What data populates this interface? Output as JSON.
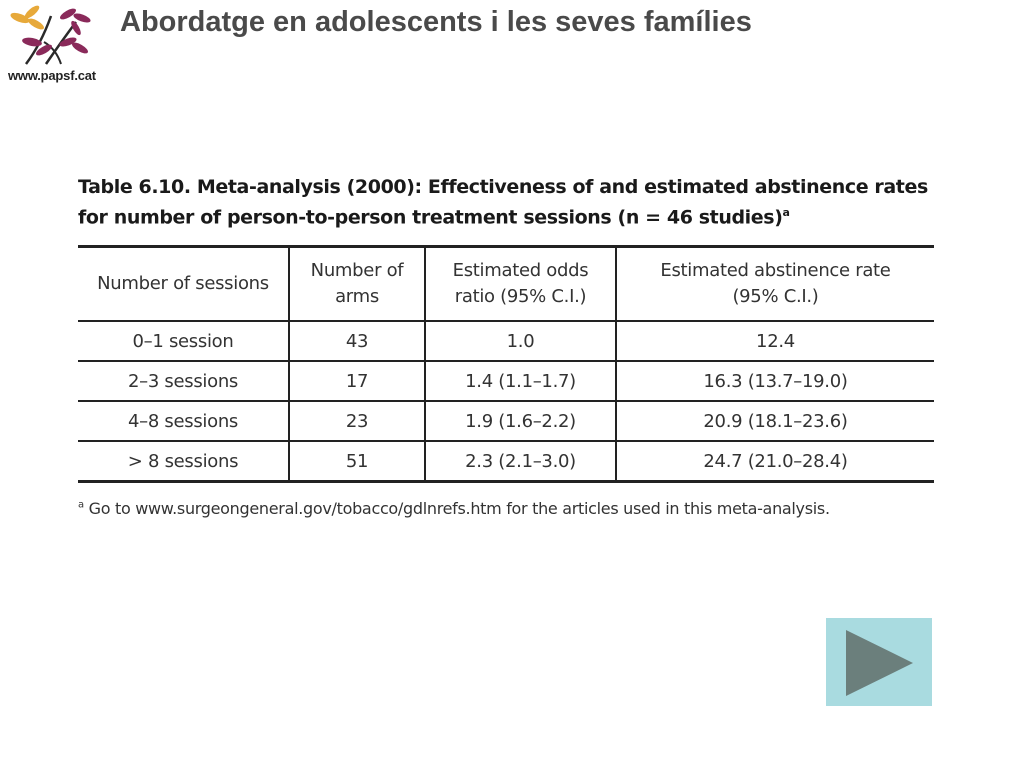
{
  "header": {
    "logo_url_text": "www.papsf.cat",
    "title": "Abordatge en adolescents i les seves famílies"
  },
  "table": {
    "caption_line1": "Table 6.10. Meta-analysis (2000): Effectiveness of and estimated abstinence rates",
    "caption_line2": "for number of person-to-person treatment sessions (n = 46 studies)",
    "caption_marker": "a",
    "headers": {
      "col1": "Number of sessions",
      "col2_line1": "Number of",
      "col2_line2": "arms",
      "col3_line1": "Estimated odds",
      "col3_line2": "ratio (95% C.I.)",
      "col4_line1": "Estimated abstinence rate",
      "col4_line2": "(95% C.I.)"
    },
    "rows": [
      {
        "sessions": "0–1 session",
        "arms": "43",
        "odds": "1.0",
        "rate": "12.4"
      },
      {
        "sessions": "2–3 sessions",
        "arms": "17",
        "odds": "1.4 (1.1–1.7)",
        "rate": "16.3 (13.7–19.0)"
      },
      {
        "sessions": "4–8 sessions",
        "arms": "23",
        "odds": "1.9 (1.6–2.2)",
        "rate": "20.9 (18.1–23.6)"
      },
      {
        "sessions": "> 8 sessions",
        "arms": "51",
        "odds": "2.3 (2.1–3.0)",
        "rate": "24.7 (21.0–28.4)"
      }
    ],
    "footnote_marker": "a",
    "footnote_text": " Go to www.surgeongeneral.gov/tobacco/gdlnrefs.htm for the articles used in this meta-analysis."
  },
  "navigation": {
    "next_icon": "play-triangle-icon",
    "button_color": "#a9dbe0",
    "icon_color": "#6b7f7c"
  }
}
